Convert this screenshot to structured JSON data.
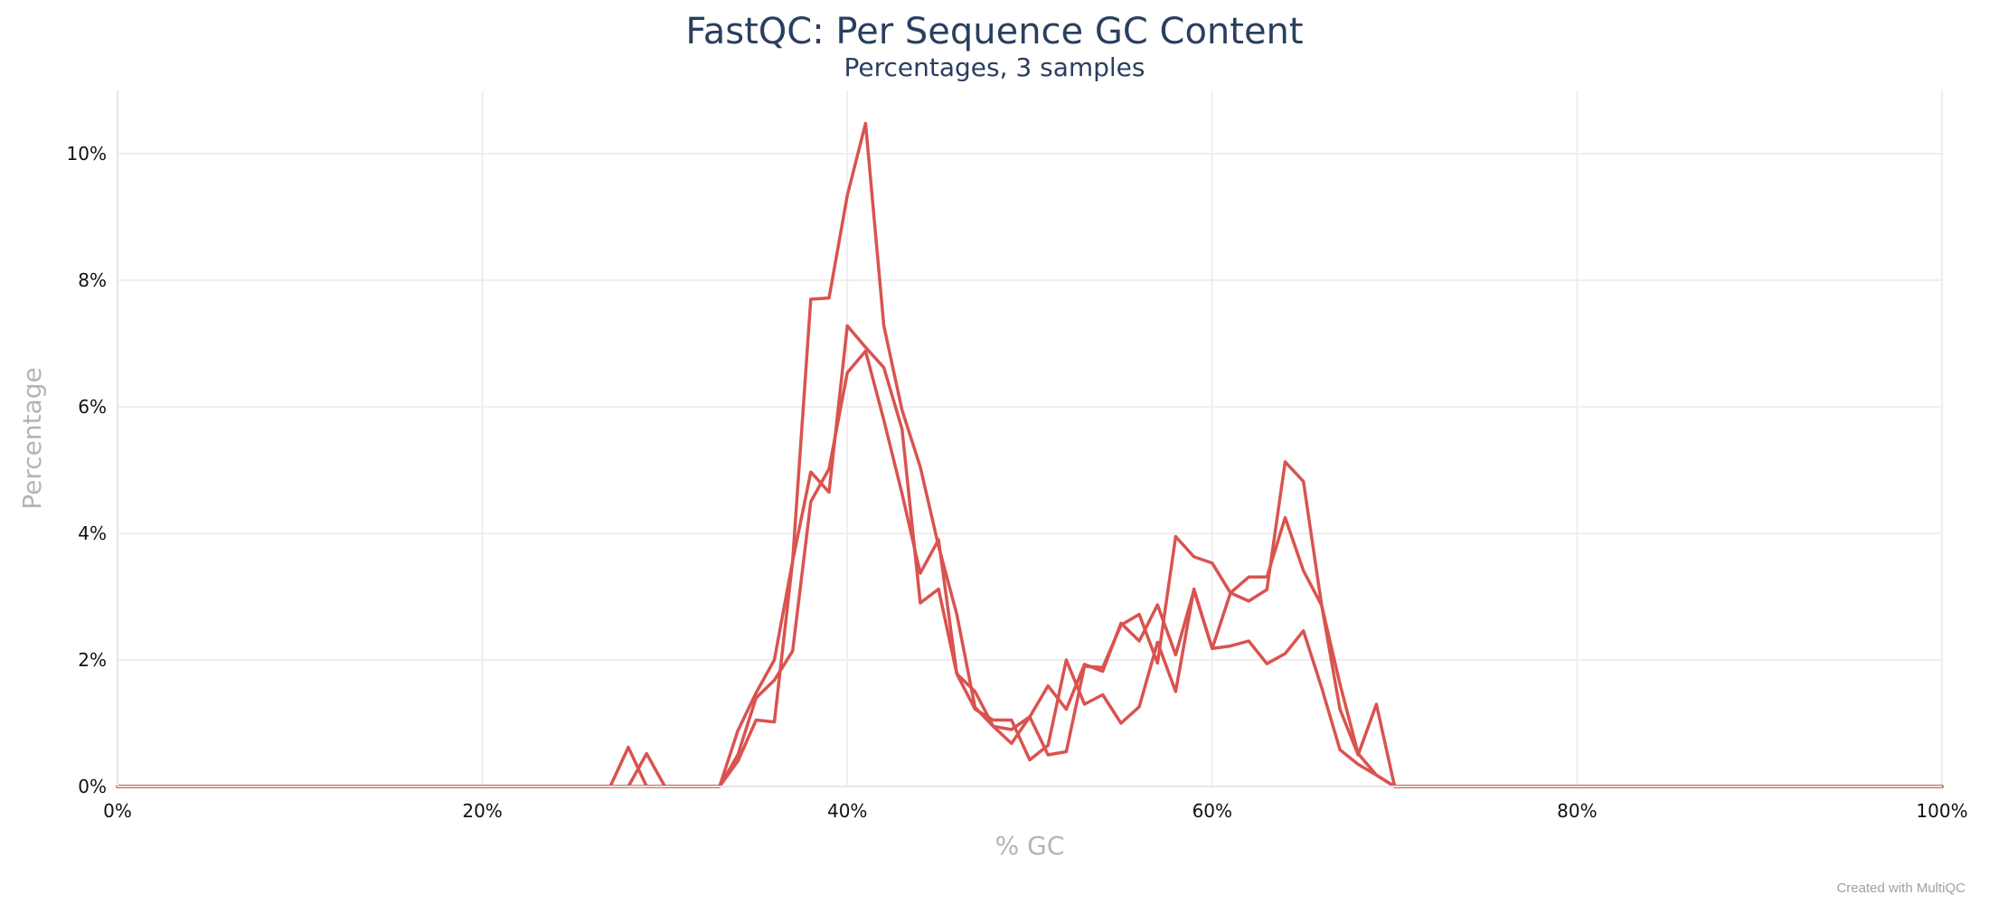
{
  "chart_data": {
    "type": "line",
    "title": "FastQC: Per Sequence GC Content",
    "subtitle": "Percentages, 3 samples",
    "xlabel": "% GC",
    "ylabel": "Percentage",
    "xlim": [
      0,
      100
    ],
    "ylim": [
      0,
      11
    ],
    "x_ticks": [
      0,
      20,
      40,
      60,
      80,
      100
    ],
    "x_tick_labels": [
      "0%",
      "20%",
      "40%",
      "60%",
      "80%",
      "100%"
    ],
    "y_ticks": [
      0,
      2,
      4,
      6,
      8,
      10
    ],
    "y_tick_labels": [
      "0%",
      "2%",
      "4%",
      "6%",
      "8%",
      "10%"
    ],
    "grid": true,
    "legend": "none",
    "series_color": "#d9534f",
    "series": [
      {
        "x": [
          0,
          27,
          28,
          29,
          33,
          34,
          35,
          36,
          37,
          38,
          39,
          40,
          41,
          42,
          43,
          44,
          45,
          46,
          47,
          48,
          49,
          50,
          51,
          52,
          53,
          54,
          55,
          56,
          57,
          58,
          59,
          60,
          61,
          62,
          63,
          64,
          65,
          66,
          67,
          68,
          69,
          70,
          100
        ],
        "y": [
          0,
          0,
          0.62,
          0,
          0,
          0.88,
          1.48,
          2.0,
          3.56,
          7.7,
          7.72,
          9.34,
          10.48,
          7.28,
          5.95,
          5.05,
          3.8,
          2.72,
          1.25,
          0.95,
          0.9,
          1.1,
          1.59,
          1.22,
          1.93,
          1.82,
          2.58,
          2.3,
          2.87,
          2.08,
          3.1,
          2.18,
          2.22,
          2.3,
          1.94,
          2.1,
          2.46,
          1.56,
          0.58,
          0.35,
          0.18,
          0,
          0
        ]
      },
      {
        "x": [
          0,
          28,
          29,
          30,
          33,
          34,
          35,
          36,
          37,
          38,
          39,
          40,
          41,
          42,
          43,
          44,
          45,
          46,
          47,
          48,
          49,
          50,
          51,
          52,
          53,
          54,
          55,
          56,
          57,
          58,
          59,
          60,
          61,
          62,
          63,
          64,
          65,
          66,
          67,
          68,
          69,
          70,
          100
        ],
        "y": [
          0,
          0,
          0.52,
          0,
          0,
          0.4,
          1.05,
          1.02,
          3.56,
          4.97,
          4.65,
          7.28,
          6.94,
          6.62,
          5.65,
          2.9,
          3.12,
          1.78,
          1.22,
          1.05,
          1.05,
          0.42,
          0.65,
          2.0,
          1.3,
          1.45,
          1.0,
          1.26,
          2.28,
          1.5,
          3.12,
          2.18,
          3.06,
          2.93,
          3.11,
          5.13,
          4.82,
          2.86,
          1.22,
          0.5,
          1.3,
          0,
          0
        ]
      },
      {
        "x": [
          0,
          33,
          34,
          35,
          36,
          37,
          38,
          39,
          40,
          41,
          42,
          43,
          44,
          45,
          46,
          47,
          48,
          49,
          50,
          51,
          52,
          53,
          54,
          55,
          56,
          57,
          58,
          59,
          60,
          61,
          62,
          63,
          64,
          65,
          66,
          67,
          68,
          69,
          70,
          100
        ],
        "y": [
          0,
          0,
          0.5,
          1.4,
          1.68,
          2.14,
          4.5,
          5.02,
          6.54,
          6.88,
          5.79,
          4.63,
          3.37,
          3.9,
          1.78,
          1.5,
          0.95,
          0.68,
          1.1,
          0.5,
          0.55,
          1.9,
          1.88,
          2.55,
          2.72,
          1.95,
          3.95,
          3.63,
          3.53,
          3.06,
          3.31,
          3.31,
          4.25,
          3.41,
          2.86,
          1.62,
          0.52,
          0.18,
          0,
          0
        ]
      }
    ]
  },
  "footer": {
    "credit": "Created with MultiQC"
  }
}
